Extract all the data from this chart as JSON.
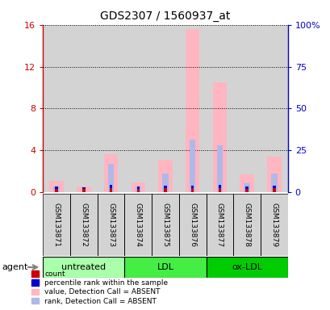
{
  "title": "GDS2307 / 1560937_at",
  "samples": [
    "GSM133871",
    "GSM133872",
    "GSM133873",
    "GSM133874",
    "GSM133875",
    "GSM133876",
    "GSM133877",
    "GSM133878",
    "GSM133879"
  ],
  "group_info": [
    {
      "start": 0,
      "end": 2,
      "label": "untreated",
      "color": "#AAFFAA"
    },
    {
      "start": 3,
      "end": 5,
      "label": "LDL",
      "color": "#44EE44"
    },
    {
      "start": 6,
      "end": 8,
      "label": "ox-LDL",
      "color": "#00CC00"
    }
  ],
  "value_absent": [
    1.1,
    0.55,
    3.6,
    0.9,
    3.1,
    15.6,
    10.5,
    1.7,
    3.4
  ],
  "rank_absent": [
    0.55,
    0.0,
    2.7,
    0.55,
    1.8,
    5.0,
    4.5,
    0.85,
    1.8
  ],
  "count_val": [
    0.32,
    0.28,
    0.42,
    0.32,
    0.38,
    0.38,
    0.42,
    0.32,
    0.38
  ],
  "count_pct": [
    0.22,
    0.18,
    0.3,
    0.22,
    0.27,
    0.27,
    0.3,
    0.22,
    0.27
  ],
  "ylim_left": [
    0,
    16
  ],
  "ylim_right": [
    0,
    100
  ],
  "yticks_left": [
    0,
    4,
    8,
    12,
    16
  ],
  "yticks_right": [
    0,
    25,
    50,
    75,
    100
  ],
  "ytick_right_labels": [
    "0",
    "25",
    "50",
    "75",
    "100%"
  ],
  "color_value_absent": "#FFB6C1",
  "color_rank_absent": "#B0B8E8",
  "color_count": "#CC0000",
  "color_pct": "#0000CC",
  "background_sample": "#D3D3D3",
  "background_white": "#FFFFFF"
}
